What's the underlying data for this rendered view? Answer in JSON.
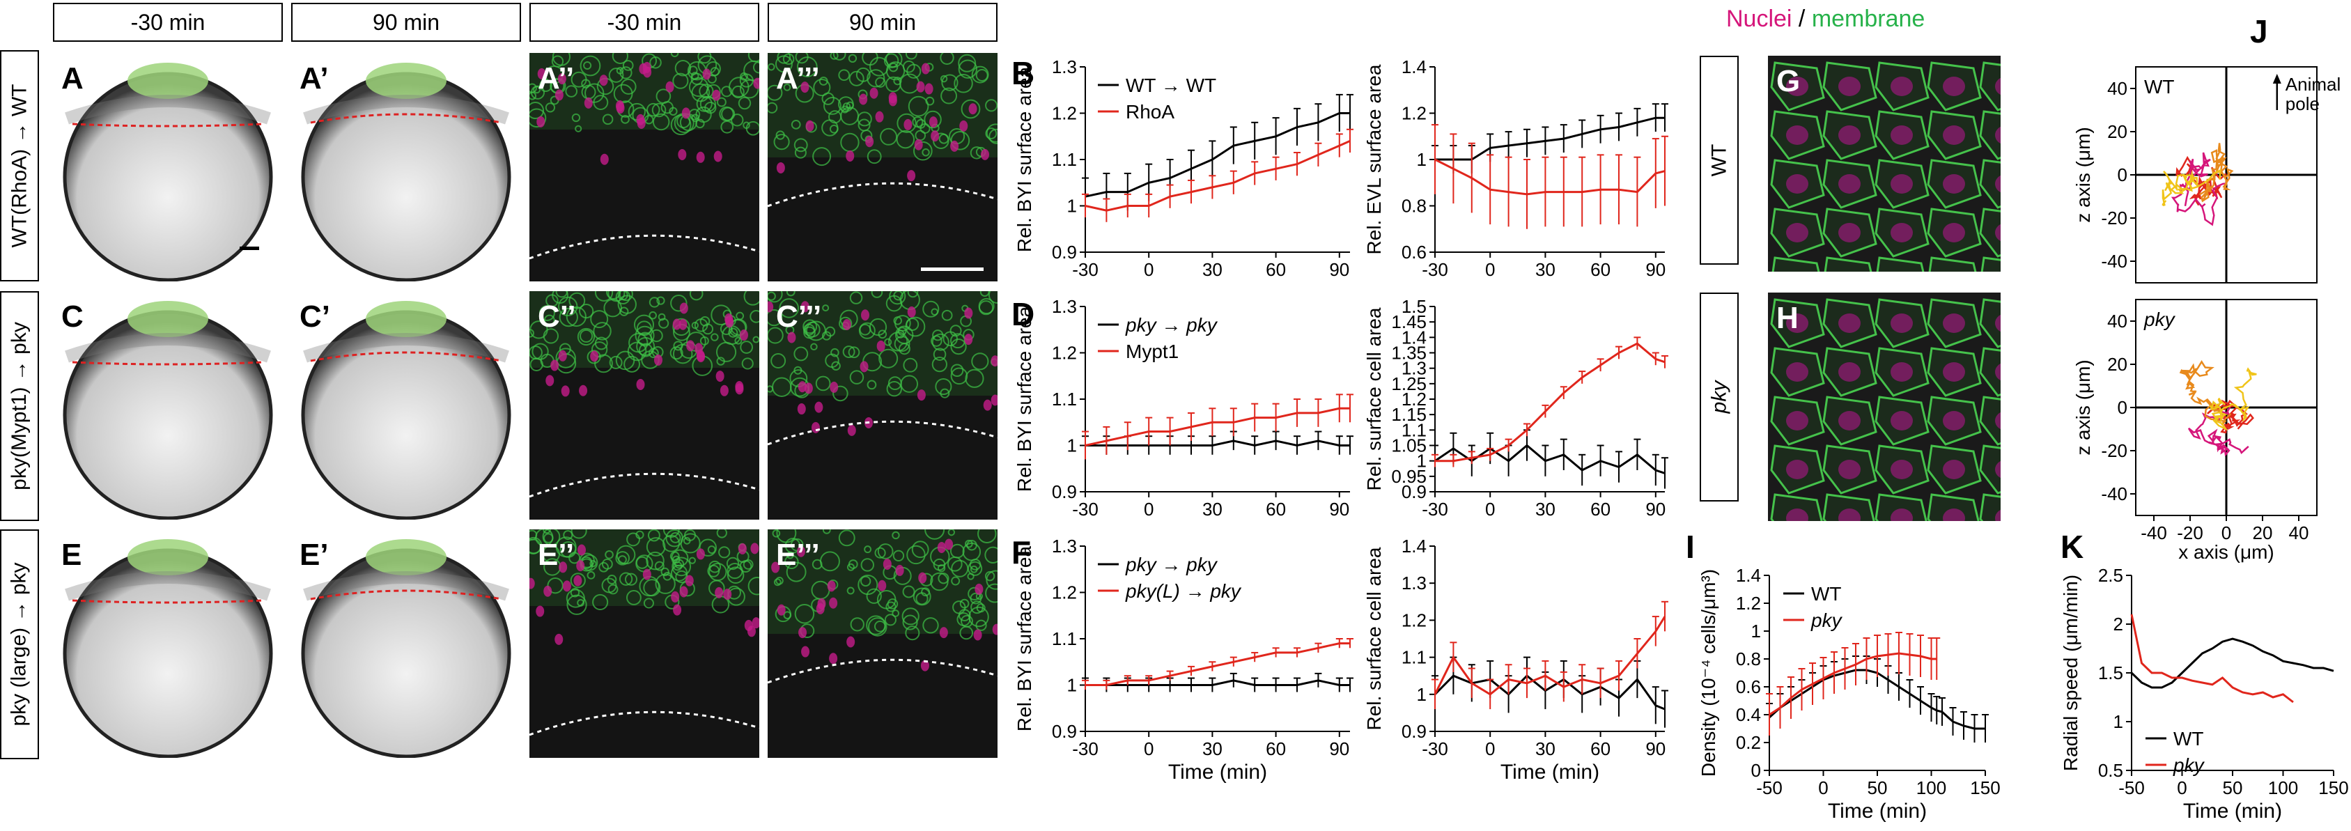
{
  "headers": [
    "-30 min",
    "90 min",
    "-30 min",
    "90 min"
  ],
  "row_labels": [
    "WT(RhoA) → WT",
    "pky(Mypt1) → pky",
    "pky (large) → pky"
  ],
  "panel_labels": {
    "row1": [
      "A",
      "A’",
      "A’’",
      "A’’’"
    ],
    "row2": [
      "C",
      "C’",
      "C’’",
      "C’’’"
    ],
    "row3": [
      "E",
      "E’",
      "E’’",
      "E’’’"
    ]
  },
  "graph_letters": [
    "B",
    "D",
    "F",
    "G",
    "H",
    "I",
    "J",
    "K"
  ],
  "legend_top_right": {
    "part1": "Nuclei",
    "slash": " / ",
    "part2": "membrane"
  },
  "gh_labels": [
    "WT",
    "pky"
  ],
  "j_labels": {
    "wt": "WT",
    "pky": "pky",
    "animal": "Animal",
    "pole": "pole"
  },
  "colors": {
    "red": "#e0261c",
    "magenta": "#d5157a",
    "green": "#27b24a",
    "orange": "#e88a1c",
    "yellow": "#f0c419"
  },
  "chart_data": [
    {
      "id": "B-left",
      "type": "line",
      "ylabel": "Rel. BYI surface area",
      "xlabel": "",
      "xlim": [
        -30,
        95
      ],
      "ylim": [
        0.9,
        1.3
      ],
      "xticks": [
        -30,
        0,
        30,
        60,
        90
      ],
      "yticks": [
        0.9,
        1.0,
        1.1,
        1.2,
        1.3
      ],
      "legend": [
        "WT → WT",
        "RhoA"
      ],
      "x": [
        -30,
        -20,
        -10,
        0,
        10,
        20,
        30,
        40,
        50,
        60,
        70,
        80,
        90,
        95
      ],
      "series": [
        {
          "name": "WT → WT",
          "color": "#000",
          "values": [
            1.02,
            1.03,
            1.03,
            1.05,
            1.06,
            1.08,
            1.1,
            1.13,
            1.14,
            1.15,
            1.17,
            1.18,
            1.2,
            1.2
          ],
          "err": 0.04
        },
        {
          "name": "RhoA",
          "color": "#e0261c",
          "values": [
            1.0,
            0.99,
            1.0,
            1.0,
            1.02,
            1.03,
            1.04,
            1.05,
            1.07,
            1.08,
            1.09,
            1.11,
            1.13,
            1.14
          ],
          "err": 0.025
        }
      ]
    },
    {
      "id": "B-right",
      "type": "line",
      "ylabel": "Rel. EVL surface area",
      "xlabel": "",
      "xlim": [
        -30,
        95
      ],
      "ylim": [
        0.6,
        1.4
      ],
      "xticks": [
        -30,
        0,
        30,
        60,
        90
      ],
      "yticks": [
        0.6,
        0.8,
        1.0,
        1.2,
        1.4
      ],
      "x": [
        -30,
        -20,
        -10,
        0,
        10,
        20,
        30,
        40,
        50,
        60,
        70,
        80,
        90,
        95
      ],
      "series": [
        {
          "name": "WT",
          "color": "#000",
          "values": [
            1.0,
            1.0,
            1.0,
            1.05,
            1.06,
            1.07,
            1.08,
            1.09,
            1.11,
            1.13,
            1.14,
            1.16,
            1.18,
            1.18
          ],
          "err": 0.06
        },
        {
          "name": "RhoA",
          "color": "#e0261c",
          "values": [
            1.0,
            0.96,
            0.92,
            0.87,
            0.86,
            0.85,
            0.86,
            0.86,
            0.86,
            0.87,
            0.87,
            0.86,
            0.94,
            0.95
          ],
          "err": 0.15
        }
      ]
    },
    {
      "id": "D-left",
      "type": "line",
      "ylabel": "Rel. BYI surface area",
      "xlabel": "",
      "xlim": [
        -30,
        95
      ],
      "ylim": [
        0.9,
        1.3
      ],
      "xticks": [
        -30,
        0,
        30,
        60,
        90
      ],
      "yticks": [
        0.9,
        1.0,
        1.1,
        1.2,
        1.3
      ],
      "legend": [
        "pky → pky",
        "Mypt1"
      ],
      "x": [
        -30,
        -20,
        -10,
        0,
        10,
        20,
        30,
        40,
        50,
        60,
        70,
        80,
        90,
        95
      ],
      "series": [
        {
          "name": "pky → pky",
          "color": "#000",
          "values": [
            1.0,
            1.0,
            1.0,
            1.0,
            1.0,
            1.0,
            1.0,
            1.01,
            1.0,
            1.01,
            1.0,
            1.01,
            1.0,
            1.0
          ],
          "err": 0.02
        },
        {
          "name": "Mypt1",
          "color": "#e0261c",
          "values": [
            1.0,
            1.01,
            1.02,
            1.03,
            1.03,
            1.04,
            1.05,
            1.05,
            1.06,
            1.06,
            1.07,
            1.07,
            1.08,
            1.08
          ],
          "err": 0.03
        }
      ]
    },
    {
      "id": "D-right",
      "type": "line",
      "ylabel": "Rel. surface cell area",
      "xlabel": "",
      "xlim": [
        -30,
        95
      ],
      "ylim": [
        0.9,
        1.5
      ],
      "xticks": [
        -30,
        0,
        30,
        60,
        90
      ],
      "yticks": [
        0.9,
        0.95,
        1.0,
        1.05,
        1.1,
        1.15,
        1.2,
        1.25,
        1.3,
        1.35,
        1.4,
        1.45,
        1.5
      ],
      "x": [
        -30,
        -20,
        -10,
        0,
        10,
        20,
        30,
        40,
        50,
        60,
        70,
        80,
        90,
        95
      ],
      "series": [
        {
          "name": "pky → pky",
          "color": "#000",
          "values": [
            1.0,
            1.04,
            1.0,
            1.04,
            1.0,
            1.05,
            1.0,
            1.02,
            0.97,
            1.0,
            0.98,
            1.02,
            0.97,
            0.96
          ],
          "err": 0.05
        },
        {
          "name": "Mypt1",
          "color": "#e0261c",
          "values": [
            1.0,
            1.0,
            1.01,
            1.02,
            1.05,
            1.1,
            1.16,
            1.22,
            1.27,
            1.31,
            1.35,
            1.38,
            1.33,
            1.32
          ],
          "err": 0.02
        }
      ]
    },
    {
      "id": "F-left",
      "type": "line",
      "ylabel": "Rel. BYI surface area",
      "xlabel": "Time (min)",
      "xlim": [
        -30,
        95
      ],
      "ylim": [
        0.9,
        1.3
      ],
      "xticks": [
        -30,
        0,
        30,
        60,
        90
      ],
      "yticks": [
        0.9,
        1.0,
        1.1,
        1.2,
        1.3
      ],
      "legend": [
        "pky → pky",
        "pky(L) → pky"
      ],
      "x": [
        -30,
        -20,
        -10,
        0,
        10,
        20,
        30,
        40,
        50,
        60,
        70,
        80,
        90,
        95
      ],
      "series": [
        {
          "name": "pky → pky",
          "color": "#000",
          "values": [
            1.0,
            1.0,
            1.0,
            1.0,
            1.0,
            1.0,
            1.0,
            1.01,
            1.0,
            1.0,
            1.0,
            1.01,
            1.0,
            1.0
          ],
          "err": 0.015
        },
        {
          "name": "pky(L) → pky",
          "color": "#e0261c",
          "values": [
            1.0,
            1.0,
            1.01,
            1.01,
            1.02,
            1.03,
            1.04,
            1.05,
            1.06,
            1.07,
            1.07,
            1.08,
            1.09,
            1.09
          ],
          "err": 0.01
        }
      ]
    },
    {
      "id": "F-right",
      "type": "line",
      "ylabel": "Rel. surface cell area",
      "xlabel": "Time (min)",
      "xlim": [
        -30,
        95
      ],
      "ylim": [
        0.9,
        1.4
      ],
      "xticks": [
        -30,
        0,
        30,
        60,
        90
      ],
      "yticks": [
        0.9,
        1.0,
        1.1,
        1.2,
        1.3,
        1.4
      ],
      "x": [
        -30,
        -20,
        -10,
        0,
        10,
        20,
        30,
        40,
        50,
        60,
        70,
        80,
        90,
        95
      ],
      "series": [
        {
          "name": "pky → pky",
          "color": "#000",
          "values": [
            1.0,
            1.05,
            1.03,
            1.04,
            1.0,
            1.05,
            1.01,
            1.04,
            1.0,
            1.02,
            0.99,
            1.04,
            0.97,
            0.96
          ],
          "err": 0.05
        },
        {
          "name": "pky(L) → pky",
          "color": "#e0261c",
          "values": [
            1.0,
            1.1,
            1.03,
            1.0,
            1.04,
            1.03,
            1.05,
            1.02,
            1.04,
            1.03,
            1.05,
            1.11,
            1.17,
            1.21
          ],
          "err": 0.04
        }
      ]
    },
    {
      "id": "I",
      "type": "line",
      "ylabel": "Density (10⁻⁴ cells/μm³)",
      "xlabel": "Time (min)",
      "xlim": [
        -50,
        150
      ],
      "ylim": [
        0,
        1.4
      ],
      "xticks": [
        -50,
        0,
        50,
        100,
        150
      ],
      "yticks": [
        0,
        0.2,
        0.4,
        0.6,
        0.8,
        1.0,
        1.2,
        1.4
      ],
      "legend": [
        "WT",
        "pky"
      ],
      "x": [
        -50,
        -40,
        -30,
        -20,
        -10,
        0,
        10,
        20,
        30,
        40,
        50,
        60,
        70,
        80,
        90,
        100,
        105,
        110,
        120,
        130,
        140,
        150
      ],
      "series": [
        {
          "name": "WT",
          "color": "#000",
          "values": [
            0.38,
            0.45,
            0.5,
            0.55,
            0.6,
            0.65,
            0.68,
            0.7,
            0.72,
            0.72,
            0.7,
            0.65,
            0.6,
            0.55,
            0.5,
            0.45,
            0.43,
            0.42,
            0.35,
            0.32,
            0.3,
            0.3
          ],
          "err": 0.1
        },
        {
          "name": "pky",
          "color": "#e0261c",
          "values": [
            0.4,
            0.45,
            0.52,
            0.58,
            0.62,
            0.66,
            0.7,
            0.73,
            0.76,
            0.8,
            0.82,
            0.83,
            0.84,
            0.83,
            0.82,
            0.8,
            0.8,
            null,
            null,
            null,
            null,
            null
          ],
          "err": 0.15
        }
      ]
    },
    {
      "id": "K",
      "type": "line",
      "ylabel": "Radial speed (μm/min)",
      "xlabel": "Time (min)",
      "xlim": [
        -50,
        150
      ],
      "ylim": [
        0.5,
        2.5
      ],
      "xticks": [
        -50,
        0,
        50,
        100,
        150
      ],
      "yticks": [
        0.5,
        1.0,
        1.5,
        2.0,
        2.5
      ],
      "legend": [
        "WT",
        "pky"
      ],
      "x": [
        -50,
        -40,
        -30,
        -20,
        -10,
        0,
        10,
        20,
        30,
        40,
        50,
        60,
        70,
        80,
        90,
        100,
        110,
        120,
        130,
        140,
        150
      ],
      "series": [
        {
          "name": "WT",
          "color": "#000",
          "values": [
            1.5,
            1.4,
            1.35,
            1.35,
            1.4,
            1.5,
            1.6,
            1.7,
            1.75,
            1.82,
            1.85,
            1.82,
            1.78,
            1.72,
            1.68,
            1.62,
            1.6,
            1.58,
            1.55,
            1.55,
            1.52
          ]
        },
        {
          "name": "pky",
          "color": "#e0261c",
          "values": [
            2.1,
            1.6,
            1.5,
            1.5,
            1.45,
            1.45,
            1.42,
            1.4,
            1.38,
            1.45,
            1.35,
            1.3,
            1.28,
            1.3,
            1.25,
            1.28,
            1.2,
            null,
            null,
            null,
            null
          ]
        }
      ]
    },
    {
      "id": "J-top",
      "type": "scatter",
      "xlabel": "",
      "ylabel": "z axis (μm)",
      "xlim": [
        -50,
        50
      ],
      "ylim": [
        -50,
        50
      ],
      "xticks": [
        -40,
        -20,
        0,
        20,
        40
      ],
      "yticks": [
        -40,
        -20,
        0,
        20,
        40
      ]
    },
    {
      "id": "J-bottom",
      "type": "scatter",
      "xlabel": "x axis (μm)",
      "ylabel": "z axis (μm)",
      "xlim": [
        -50,
        50
      ],
      "ylim": [
        -50,
        50
      ],
      "xticks": [
        -40,
        -20,
        0,
        20,
        40
      ],
      "yticks": [
        -40,
        -20,
        0,
        20,
        40
      ]
    }
  ]
}
